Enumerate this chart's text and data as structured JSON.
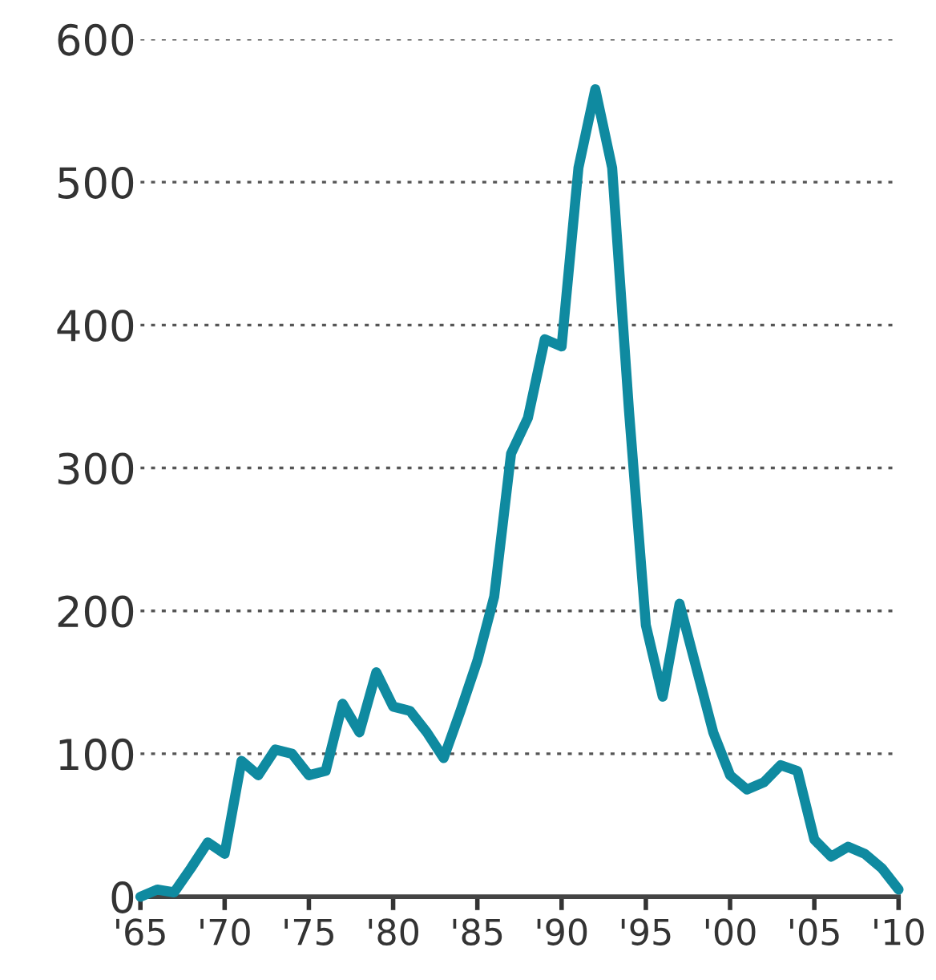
{
  "chart_data": {
    "type": "line",
    "x": [
      1965,
      1966,
      1967,
      1968,
      1969,
      1970,
      1971,
      1972,
      1973,
      1974,
      1975,
      1976,
      1977,
      1978,
      1979,
      1980,
      1981,
      1982,
      1983,
      1984,
      1985,
      1986,
      1987,
      1988,
      1989,
      1990,
      1991,
      1992,
      1993,
      1994,
      1995,
      1996,
      1997,
      1998,
      1999,
      2000,
      2001,
      2002,
      2003,
      2004,
      2005,
      2006,
      2007,
      2008,
      2009,
      2010
    ],
    "series": [
      {
        "color": "#0f8aa0",
        "values": [
          0,
          5,
          3,
          20,
          38,
          30,
          95,
          85,
          103,
          100,
          85,
          88,
          135,
          115,
          157,
          133,
          130,
          115,
          97,
          130,
          165,
          210,
          310,
          335,
          390,
          385,
          510,
          565,
          510,
          340,
          190,
          140,
          205,
          160,
          115,
          85,
          75,
          80,
          92,
          88,
          40,
          28,
          35,
          30,
          20,
          5
        ]
      }
    ],
    "xlim": [
      1965,
      2010
    ],
    "xticks": [
      {
        "value": 1965,
        "label": "'65"
      },
      {
        "value": 1970,
        "label": "'70"
      },
      {
        "value": 1975,
        "label": "'75"
      },
      {
        "value": 1980,
        "label": "'80"
      },
      {
        "value": 1985,
        "label": "'85"
      },
      {
        "value": 1990,
        "label": "'90"
      },
      {
        "value": 1995,
        "label": "'95"
      },
      {
        "value": 2000,
        "label": "'00"
      },
      {
        "value": 2005,
        "label": "'05"
      },
      {
        "value": 2010,
        "label": "'10"
      }
    ],
    "ylim": [
      0,
      600
    ],
    "yticks": [
      0,
      100,
      200,
      300,
      400,
      500,
      600
    ],
    "grid": "y",
    "marker": "none",
    "line_style": "solid"
  }
}
